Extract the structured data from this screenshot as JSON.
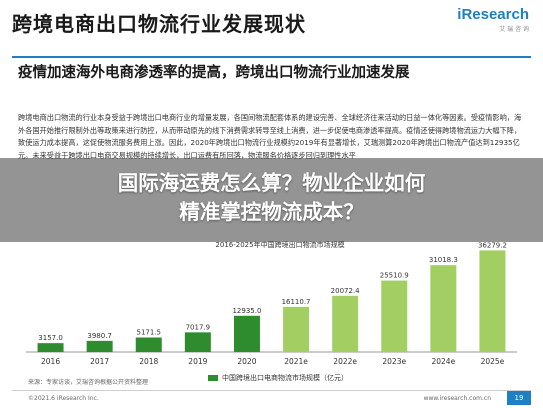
{
  "slide": {
    "title": "跨境电商出口物流行业发展现状",
    "logo": "iResearch",
    "logo_sub": "艾 瑞 咨 询",
    "subtitle": "疫情加速海外电商渗透率的提高，跨境出口物流行业加速发展",
    "body": "跨境电商出口物流的行业本身受益于跨境出口电商行业的增量发展，各国间物流配套体系的建设完善、全球经济往来活动的日益一体化等因素。受疫情影响，海外各国开始推行限制外出等政策来进行防控，从而带动原先的线下消费需求转导至线上消费，进一步促使电商渗透率提高。疫情还使得跨境物流运力大幅下降，致使运力成本提高，这促使物流服务费用上涨。因此，2020年跨境出口物流行业规模约2019年有显著增长，艾瑞测算2020年跨境出口物流产值达到12935亿元。未来受益于跨境出口电商交易规模的持续增长，出口运费有所回落，物流服务价格逐步回归到理性水平",
    "chart_title": "2016-2025年中国跨境出口物流市场规模",
    "legend": "中国跨境出口电商物流市场规模（亿元）",
    "source": "来源：专家访谈，艾瑞咨询根据公开资料整理",
    "copyright": "©2021.6 iResearch Inc.",
    "website": "www.iresearch.com.cn",
    "page": "19"
  },
  "headline": {
    "line1": "国际海运费怎么算？物业企业如何",
    "line2": "精准掌控物流成本？"
  },
  "colors": {
    "actual_bar": "#2e8b2e",
    "forecast_bar": "#a3cf62",
    "brand_blue": "#1f7fc1"
  },
  "chart_data": {
    "type": "bar",
    "categories": [
      "2016",
      "2017",
      "2018",
      "2019",
      "2020",
      "2021e",
      "2022e",
      "2023e",
      "2024e",
      "2025e"
    ],
    "values": [
      3157.0,
      3980.7,
      5171.5,
      7017.9,
      12935.0,
      16110.7,
      20072.4,
      25510.9,
      31018.3,
      36279.2
    ],
    "labels": [
      "3157.0",
      "3980.7",
      "5171.5",
      "7017.9",
      "12935.0",
      "16110.7",
      "20072.4",
      "25510.9",
      "31018.3",
      "36279.2"
    ],
    "forecast_from_index": 5,
    "title": "2016-2025年中国跨境出口物流市场规模",
    "legend": [
      "中国跨境出口电商物流市场规模（亿元）"
    ],
    "ylim": [
      0,
      40000
    ]
  }
}
